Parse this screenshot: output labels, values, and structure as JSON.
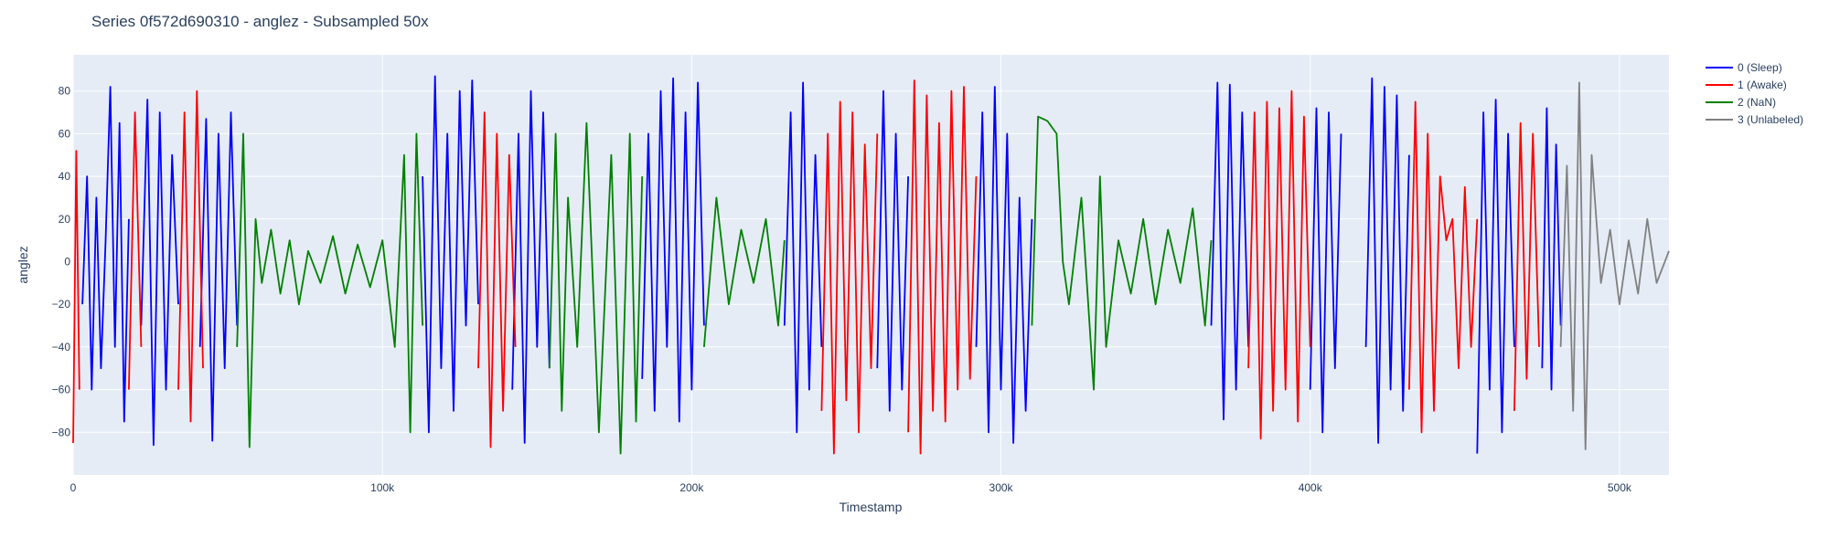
{
  "chart_data": {
    "type": "line",
    "title": "Series 0f572d690310 - anglez - Subsampled 50x",
    "xlabel": "Timestamp",
    "ylabel": "anglez",
    "xlim": [
      0,
      516000
    ],
    "ylim": [
      -100,
      97
    ],
    "x_ticks": [
      0,
      100000,
      200000,
      300000,
      400000,
      500000
    ],
    "x_tick_labels": [
      "0",
      "100k",
      "200k",
      "300k",
      "400k",
      "500k"
    ],
    "y_ticks": [
      -80,
      -60,
      -40,
      -20,
      0,
      20,
      40,
      60,
      80
    ],
    "y_tick_labels": [
      "−80",
      "−60",
      "−40",
      "−20",
      "0",
      "20",
      "40",
      "60",
      "80"
    ],
    "grid": true,
    "legend_position": "top-right",
    "colors": {
      "plot_bg": "#e5ecf6",
      "grid": "#ffffff",
      "sleep": "#0000ff",
      "awake": "#ff0000",
      "nan": "#008000",
      "unlabeled": "#808080"
    },
    "series": [
      {
        "name": "0 (Sleep)",
        "color": "#0000ff",
        "segments": [
          {
            "x": [
              3000,
              4500,
              6000,
              7500,
              9000,
              10500,
              12000,
              13500,
              15000,
              16500,
              18000
            ],
            "y": [
              -20,
              40,
              -60,
              30,
              -50,
              10,
              82,
              -40,
              65,
              -75,
              20
            ]
          },
          {
            "x": [
              22000,
              24000,
              26000,
              28000,
              30000,
              32000,
              34000
            ],
            "y": [
              -30,
              76,
              -86,
              70,
              -60,
              50,
              -20
            ]
          },
          {
            "x": [
              41000,
              43000,
              45000,
              47000,
              49000,
              51000,
              53000
            ],
            "y": [
              -40,
              67,
              -84,
              60,
              -50,
              70,
              -30
            ]
          },
          {
            "x": [
              113000,
              115000,
              117000,
              119000,
              121000,
              123000,
              125000,
              127000,
              129000,
              131000
            ],
            "y": [
              40,
              -80,
              87,
              -50,
              60,
              -70,
              80,
              -30,
              85,
              -20
            ]
          },
          {
            "x": [
              142000,
              144000,
              146000,
              148000,
              150000,
              152000,
              154000
            ],
            "y": [
              -60,
              60,
              -85,
              80,
              -40,
              70,
              -50
            ]
          },
          {
            "x": [
              184000,
              186000,
              188000,
              190000,
              192000,
              194000,
              196000,
              198000,
              200000,
              202000,
              204000
            ],
            "y": [
              -55,
              60,
              -70,
              80,
              -40,
              86,
              -75,
              70,
              -60,
              84,
              -30
            ]
          },
          {
            "x": [
              230000,
              232000,
              234000,
              236000,
              238000,
              240000,
              242000
            ],
            "y": [
              -30,
              70,
              -80,
              84,
              -60,
              50,
              -40
            ]
          },
          {
            "x": [
              260000,
              262000,
              264000,
              266000,
              268000,
              270000
            ],
            "y": [
              -50,
              80,
              -70,
              60,
              -60,
              40
            ]
          },
          {
            "x": [
              292000,
              294000,
              296000,
              298000,
              300000,
              302000,
              304000,
              306000,
              308000,
              310000
            ],
            "y": [
              -40,
              70,
              -80,
              82,
              -60,
              60,
              -85,
              30,
              -70,
              20
            ]
          },
          {
            "x": [
              368000,
              370000,
              372000,
              374000,
              376000,
              378000,
              380000
            ],
            "y": [
              -30,
              84,
              -74,
              83,
              -60,
              70,
              -40
            ]
          },
          {
            "x": [
              400000,
              402000,
              404000,
              406000,
              408000,
              410000
            ],
            "y": [
              -60,
              72,
              -80,
              70,
              -50,
              60
            ]
          },
          {
            "x": [
              418000,
              420000,
              422000,
              424000,
              426000,
              428000,
              430000,
              432000
            ],
            "y": [
              -40,
              86,
              -85,
              82,
              -60,
              78,
              -70,
              50
            ]
          },
          {
            "x": [
              454000,
              456000,
              458000,
              460000,
              462000,
              464000,
              466000
            ],
            "y": [
              -90,
              70,
              -60,
              76,
              -80,
              60,
              -40
            ]
          },
          {
            "x": [
              475000,
              476500,
              478000,
              479500,
              481000
            ],
            "y": [
              -50,
              72,
              -60,
              55,
              -30
            ]
          }
        ]
      },
      {
        "name": "1 (Awake)",
        "color": "#ff0000",
        "segments": [
          {
            "x": [
              0,
              1000,
              2000
            ],
            "y": [
              -85,
              52,
              -60
            ]
          },
          {
            "x": [
              18000,
              20000,
              22000
            ],
            "y": [
              -60,
              70,
              -40
            ]
          },
          {
            "x": [
              34000,
              36000,
              38000,
              40000,
              42000
            ],
            "y": [
              -60,
              70,
              -75,
              80,
              -50
            ]
          },
          {
            "x": [
              131000,
              133000,
              135000,
              137000,
              139000,
              141000,
              143000
            ],
            "y": [
              -50,
              70,
              -87,
              60,
              -70,
              50,
              -40
            ]
          },
          {
            "x": [
              242000,
              244000,
              246000,
              248000,
              250000,
              252000,
              254000,
              256000,
              258000,
              260000
            ],
            "y": [
              -70,
              60,
              -90,
              75,
              -65,
              70,
              -80,
              55,
              -50,
              60
            ]
          },
          {
            "x": [
              270000,
              272000,
              274000,
              276000,
              278000,
              280000,
              282000,
              284000,
              286000,
              288000,
              290000,
              292000
            ],
            "y": [
              -80,
              85,
              -90,
              78,
              -70,
              65,
              -75,
              80,
              -60,
              82,
              -55,
              40
            ]
          },
          {
            "x": [
              380000,
              382000,
              384000,
              386000,
              388000,
              390000,
              392000,
              394000,
              396000,
              398000,
              400000
            ],
            "y": [
              -50,
              70,
              -83,
              75,
              -70,
              72,
              -60,
              80,
              -75,
              68,
              -40
            ]
          },
          {
            "x": [
              432000,
              434000,
              436000,
              438000,
              440000,
              442000,
              444000,
              446000,
              448000,
              450000,
              452000,
              454000
            ],
            "y": [
              -60,
              75,
              -80,
              60,
              -70,
              40,
              10,
              20,
              -50,
              35,
              -40,
              20
            ]
          },
          {
            "x": [
              466000,
              468000,
              470000,
              472000,
              474000
            ],
            "y": [
              -70,
              65,
              -55,
              60,
              -40
            ]
          }
        ]
      },
      {
        "name": "2 (NaN)",
        "color": "#008000",
        "segments": [
          {
            "x": [
              53000,
              55000,
              57000,
              59000,
              61000,
              64000,
              67000,
              70000,
              73000,
              76000,
              80000,
              84000,
              88000,
              92000,
              96000,
              100000,
              104000,
              107000,
              109000,
              111000,
              113000
            ],
            "y": [
              -40,
              60,
              -87,
              20,
              -10,
              15,
              -15,
              10,
              -20,
              5,
              -10,
              12,
              -15,
              8,
              -12,
              10,
              -40,
              50,
              -80,
              60,
              -30
            ]
          },
          {
            "x": [
              154000,
              156000,
              158000,
              160000,
              163000,
              166000,
              170000,
              174000,
              177000,
              180000,
              182000,
              184000
            ],
            "y": [
              -50,
              60,
              -70,
              30,
              -40,
              65,
              -80,
              50,
              -90,
              60,
              -75,
              40
            ]
          },
          {
            "x": [
              204000,
              208000,
              212000,
              216000,
              220000,
              224000,
              228000,
              230000
            ],
            "y": [
              -40,
              30,
              -20,
              15,
              -10,
              20,
              -30,
              10
            ]
          },
          {
            "x": [
              310000,
              312000,
              315000,
              318000,
              320000,
              322000,
              326000,
              330000,
              332000,
              334000,
              338000,
              342000,
              346000,
              350000,
              354000,
              358000,
              362000,
              366000,
              368000
            ],
            "y": [
              -30,
              68,
              66,
              60,
              0,
              -20,
              30,
              -60,
              40,
              -40,
              10,
              -15,
              20,
              -20,
              15,
              -10,
              25,
              -30,
              10
            ]
          }
        ]
      },
      {
        "name": "3 (Unlabeled)",
        "color": "#808080",
        "segments": [
          {
            "x": [
              481000,
              483000,
              485000,
              487000,
              489000,
              491000,
              494000,
              497000,
              500000,
              503000,
              506000,
              509000,
              512000,
              516000
            ],
            "y": [
              -40,
              45,
              -70,
              84,
              -88,
              50,
              -10,
              15,
              -20,
              10,
              -15,
              20,
              -10,
              5
            ]
          }
        ]
      }
    ]
  }
}
